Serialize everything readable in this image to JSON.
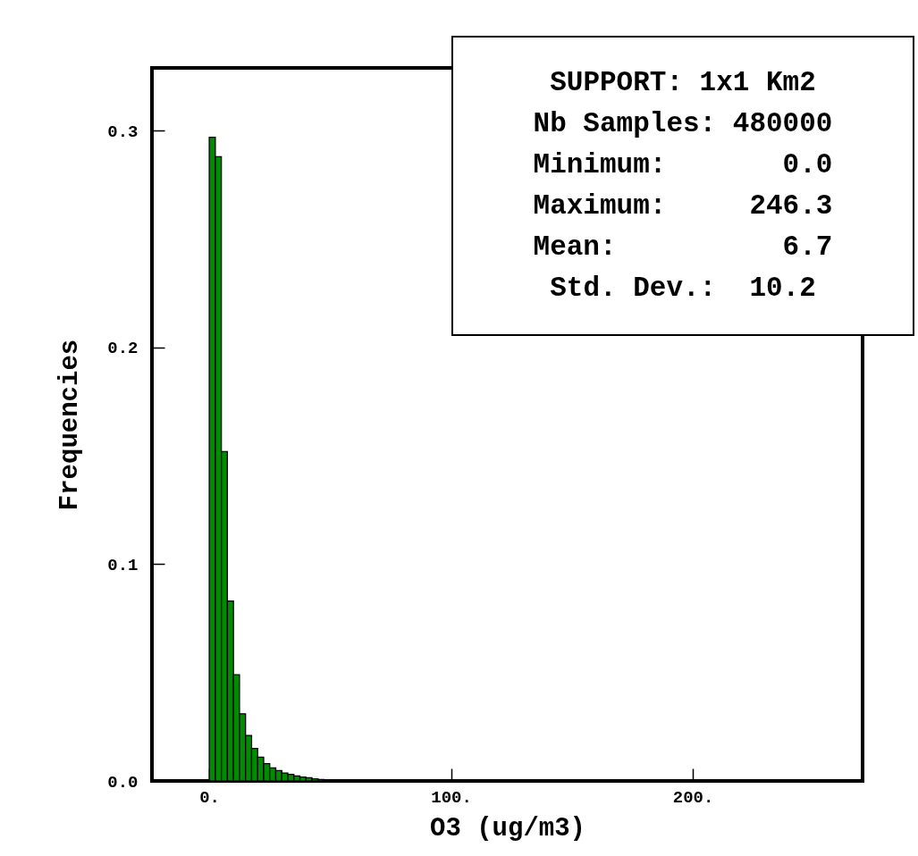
{
  "chart_data": {
    "type": "histogram",
    "xlabel": "O3 (ug/m3)",
    "ylabel": "Frequencies",
    "bins": [
      0,
      2.5,
      5,
      7.5,
      10,
      12.5,
      15,
      17.5,
      20,
      22.5,
      25,
      27.5,
      30,
      32.5,
      35,
      37.5,
      40,
      42.5,
      45,
      47.5,
      50
    ],
    "values": [
      0.297,
      0.288,
      0.152,
      0.083,
      0.049,
      0.031,
      0.021,
      0.015,
      0.011,
      0.008,
      0.006,
      0.0048,
      0.0037,
      0.003,
      0.0023,
      0.0018,
      0.0015,
      0.001,
      0.0007,
      0.0005
    ],
    "color": "#008c00",
    "xlim": [
      -23.7,
      270.2
    ],
    "xticks": [
      {
        "value": 0,
        "label": "0."
      },
      {
        "value": 100,
        "label": "100."
      },
      {
        "value": 200,
        "label": "200."
      }
    ],
    "ylim": [
      0,
      0.329
    ],
    "yticks": [
      {
        "value": 0,
        "label": "0.0"
      },
      {
        "value": 0.1,
        "label": "0.1"
      },
      {
        "value": 0.2,
        "label": "0.2"
      },
      {
        "value": 0.3,
        "label": "0.3"
      }
    ],
    "annotations": [
      "SUPPORT: 1x1 Km2",
      "Nb Samples: 480000",
      "Minimum:       0.0",
      "Maximum:     246.3",
      "Mean:          6.7",
      "Std. Dev.:  10.2"
    ]
  }
}
